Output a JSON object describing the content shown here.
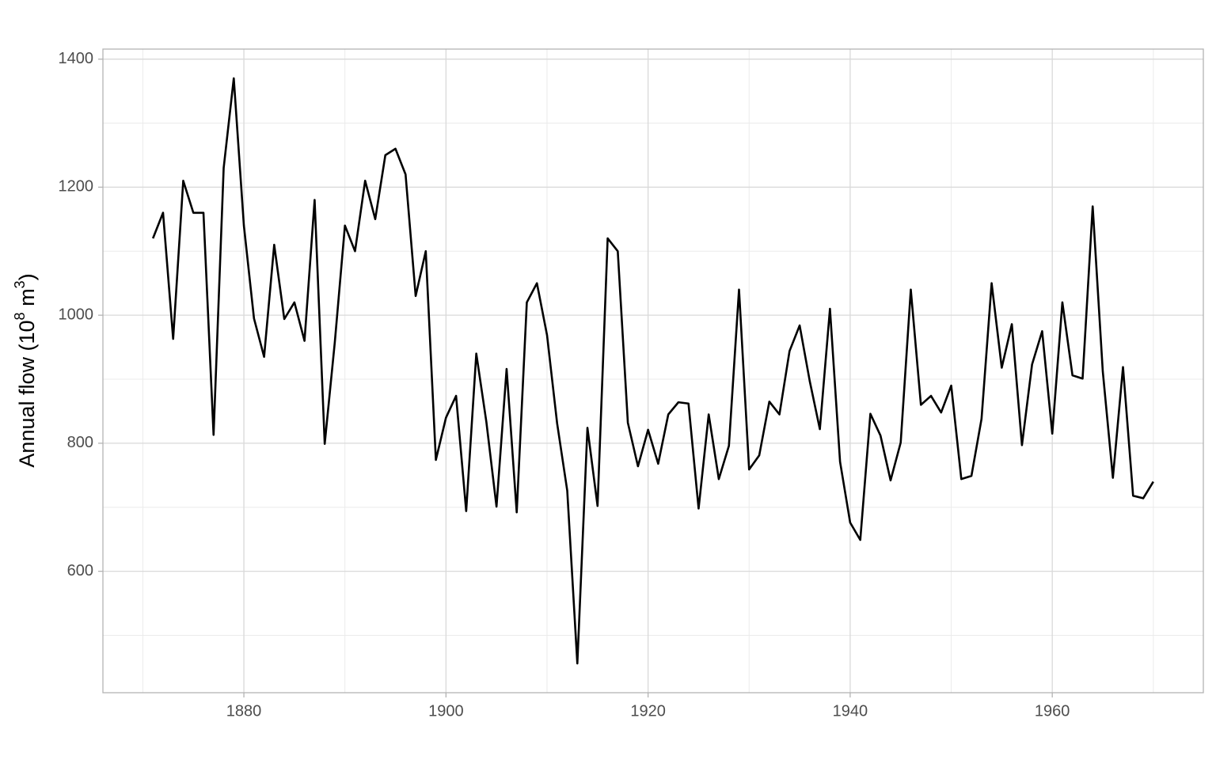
{
  "chart_data": {
    "type": "line",
    "y_label": {
      "text": "Annual flow  (10",
      "sup1": "8",
      "mid": " m",
      "sup2": "3",
      "end": ")"
    },
    "x": [
      1871,
      1872,
      1873,
      1874,
      1875,
      1876,
      1877,
      1878,
      1879,
      1880,
      1881,
      1882,
      1883,
      1884,
      1885,
      1886,
      1887,
      1888,
      1889,
      1890,
      1891,
      1892,
      1893,
      1894,
      1895,
      1896,
      1897,
      1898,
      1899,
      1900,
      1901,
      1902,
      1903,
      1904,
      1905,
      1906,
      1907,
      1908,
      1909,
      1910,
      1911,
      1912,
      1913,
      1914,
      1915,
      1916,
      1917,
      1918,
      1919,
      1920,
      1921,
      1922,
      1923,
      1924,
      1925,
      1926,
      1927,
      1928,
      1929,
      1930,
      1931,
      1932,
      1933,
      1934,
      1935,
      1936,
      1937,
      1938,
      1939,
      1940,
      1941,
      1942,
      1943,
      1944,
      1945,
      1946,
      1947,
      1948,
      1949,
      1950,
      1951,
      1952,
      1953,
      1954,
      1955,
      1956,
      1957,
      1958,
      1959,
      1960,
      1961,
      1962,
      1963,
      1964,
      1965,
      1966,
      1967,
      1968,
      1969,
      1970
    ],
    "series": [
      {
        "color": "#000000",
        "values": [
          1120,
          1160,
          963,
          1210,
          1160,
          1160,
          813,
          1230,
          1370,
          1140,
          995,
          935,
          1110,
          994,
          1020,
          960,
          1180,
          799,
          958,
          1140,
          1100,
          1210,
          1150,
          1250,
          1260,
          1220,
          1030,
          1100,
          774,
          840,
          874,
          694,
          940,
          833,
          701,
          916,
          692,
          1020,
          1050,
          969,
          831,
          726,
          456,
          824,
          702,
          1120,
          1100,
          832,
          764,
          821,
          768,
          845,
          864,
          862,
          698,
          845,
          744,
          796,
          1040,
          759,
          781,
          865,
          845,
          944,
          984,
          897,
          822,
          1010,
          771,
          676,
          649,
          846,
          812,
          742,
          801,
          1040,
          860,
          874,
          848,
          890,
          744,
          749,
          838,
          1050,
          918,
          986,
          797,
          923,
          975,
          815,
          1020,
          906,
          901,
          1170,
          912,
          746,
          919,
          718,
          714,
          740
        ]
      }
    ],
    "xlim": [
      1866.05,
      1974.95
    ],
    "xticks": [
      1880,
      1900,
      1920,
      1940,
      1960
    ],
    "xminor": [
      1870,
      1890,
      1910,
      1930,
      1950,
      1970
    ],
    "ylim": [
      410.3,
      1415.7
    ],
    "yticks": [
      600,
      800,
      1000,
      1200,
      1400
    ],
    "yminor": [
      500,
      700,
      900,
      1100,
      1300
    ],
    "grid": true
  }
}
